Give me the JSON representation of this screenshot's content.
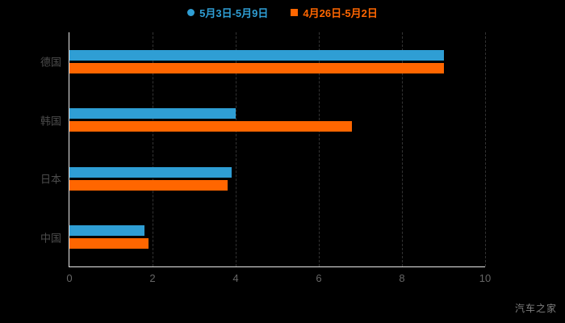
{
  "legend": {
    "series1_label": "5月3日-5月9日",
    "series2_label": "4月26日-5月2日"
  },
  "watermark": "汽车之家",
  "colors": {
    "series1": "#2f9ed4",
    "series2": "#ff6600",
    "background": "#000000",
    "axis": "#e8e8e8",
    "grid": "#333333",
    "tick_text": "#666666",
    "category_text": "#4c4c4c"
  },
  "chart_data": {
    "type": "bar",
    "orientation": "horizontal",
    "title": "",
    "xlabel": "",
    "ylabel": "",
    "categories": [
      "德国",
      "韩国",
      "日本",
      "中国"
    ],
    "series": [
      {
        "name": "5月3日-5月9日",
        "color": "#2f9ed4",
        "values": [
          9.0,
          4.0,
          3.9,
          1.8
        ]
      },
      {
        "name": "4月26日-5月2日",
        "color": "#ff6600",
        "values": [
          9.0,
          6.8,
          3.8,
          1.9
        ]
      }
    ],
    "xlim": [
      0,
      10
    ],
    "xticks": [
      0,
      2,
      4,
      6,
      8,
      10
    ],
    "grid": "vertical-dashed",
    "legend_position": "top-center"
  }
}
